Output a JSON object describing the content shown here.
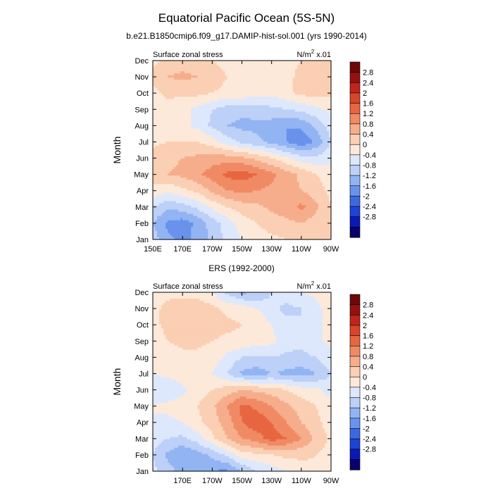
{
  "figure": {
    "title": "Equatorial Pacific Ocean (5S-5N)",
    "subtitle": "b.e21.B1850cmip6.f09_g17.DAMIP-hist-sol.001 (yrs 1990-2014)",
    "colors": {
      "levels": [
        "#08026b",
        "#0a18b8",
        "#1d44d4",
        "#3b6ae0",
        "#6892ec",
        "#93b4f3",
        "#bcd0f8",
        "#dde8fc",
        "#fde9d9",
        "#fbcfb4",
        "#f6ad8b",
        "#f08a65",
        "#e76641",
        "#d9452a",
        "#c0251b",
        "#961010",
        "#6e0808"
      ],
      "level_bounds": [
        -2.8,
        -2.4,
        -2,
        -1.6,
        -1.2,
        -0.8,
        -0.4,
        0,
        0.4,
        0.8,
        1.2,
        1.6,
        2,
        2.4,
        2.8
      ]
    }
  },
  "chart_data": [
    {
      "type": "heatmap",
      "subtitle": "",
      "left_label": "Surface zonal stress",
      "right_label": "N/m",
      "right_label_sup": "2",
      "right_label_suffix": " x.01",
      "ylabel": "Month",
      "xlabel": "",
      "x_ticks": [
        "150E",
        "170E",
        "170W",
        "150W",
        "130W",
        "110W",
        "90W"
      ],
      "x_tick_values": [
        150,
        170,
        190,
        210,
        230,
        250,
        270
      ],
      "xlim": [
        150,
        270
      ],
      "y_ticks": [
        "Jan",
        "Feb",
        "Mar",
        "Apr",
        "May",
        "Jun",
        "Jul",
        "Aug",
        "Sep",
        "Oct",
        "Nov",
        "Dec"
      ],
      "colorbar_labels": [
        "2.8",
        "2.4",
        "2",
        "1.6",
        "1.2",
        "0.8",
        "0.4",
        "0",
        "-0.4",
        "-0.8",
        "-1.2",
        "-1.6",
        "-2",
        "-2.4",
        "-2.8"
      ],
      "x": [
        150,
        160,
        170,
        180,
        190,
        200,
        210,
        220,
        230,
        240,
        250,
        260,
        270
      ],
      "values": [
        [
          -0.6,
          -1.1,
          -1.3,
          -1.1,
          -0.7,
          -0.3,
          0.0,
          0.2,
          0.3,
          0.4,
          0.5,
          0.5,
          0.4
        ],
        [
          -0.8,
          -1.3,
          -1.4,
          -1.1,
          -0.6,
          -0.2,
          0.2,
          0.4,
          0.6,
          0.7,
          0.8,
          0.6,
          0.4
        ],
        [
          -0.4,
          -0.7,
          -0.6,
          -0.3,
          0.1,
          0.4,
          0.6,
          0.7,
          0.9,
          1.0,
          1.3,
          0.9,
          0.4
        ],
        [
          0.3,
          0.1,
          0.3,
          0.5,
          0.9,
          1.2,
          1.3,
          1.2,
          1.1,
          1.0,
          0.8,
          0.6,
          0.3
        ],
        [
          0.6,
          0.8,
          0.9,
          1.1,
          1.4,
          1.7,
          1.8,
          1.6,
          1.3,
          1.0,
          0.7,
          0.4,
          0.2
        ],
        [
          0.6,
          0.7,
          0.8,
          0.9,
          1.0,
          1.0,
          0.9,
          0.7,
          0.4,
          0.1,
          -0.2,
          -0.3,
          -0.1
        ],
        [
          0.3,
          0.4,
          0.4,
          0.4,
          0.2,
          -0.2,
          -0.5,
          -0.7,
          -0.9,
          -1.2,
          -1.5,
          -1.1,
          -0.4
        ],
        [
          0.0,
          0.1,
          0.1,
          -0.1,
          -0.5,
          -0.8,
          -0.9,
          -0.9,
          -1.0,
          -1.2,
          -1.1,
          -0.7,
          -0.2
        ],
        [
          0.2,
          0.2,
          0.1,
          -0.1,
          -0.4,
          -0.6,
          -0.7,
          -0.6,
          -0.5,
          -0.4,
          -0.3,
          -0.1,
          0.1
        ],
        [
          0.3,
          0.5,
          0.5,
          0.5,
          0.4,
          0.3,
          0.3,
          0.2,
          0.1,
          0.3,
          0.5,
          0.6,
          0.5
        ],
        [
          0.5,
          0.8,
          0.9,
          0.8,
          0.6,
          0.4,
          0.4,
          0.2,
          0.1,
          0.3,
          0.5,
          0.6,
          0.5
        ],
        [
          0.3,
          0.5,
          0.6,
          0.5,
          0.4,
          0.3,
          0.2,
          0.1,
          0.1,
          0.3,
          0.4,
          0.5,
          0.4
        ]
      ]
    },
    {
      "type": "heatmap",
      "subtitle": "ERS (1992-2000)",
      "left_label": "Surface zonal stress",
      "right_label": "N/m",
      "right_label_sup": "2",
      "right_label_suffix": " x.01",
      "ylabel": "Month",
      "xlabel": "",
      "x_ticks": [
        "170E",
        "170W",
        "150W",
        "130W",
        "110W",
        "90W"
      ],
      "x_tick_values": [
        170,
        190,
        210,
        230,
        250,
        270
      ],
      "xlim": [
        150,
        270
      ],
      "y_ticks": [
        "Jan",
        "Feb",
        "Mar",
        "Apr",
        "May",
        "Jun",
        "Jul",
        "Aug",
        "Sep",
        "Oct",
        "Nov",
        "Dec"
      ],
      "colorbar_labels": [
        "2.8",
        "2.4",
        "2",
        "1.6",
        "1.2",
        "0.8",
        "0.4",
        "0",
        "-0.4",
        "-0.8",
        "-1.2",
        "-1.6",
        "-2",
        "-2.4",
        "-2.8"
      ],
      "x": [
        150,
        160,
        170,
        180,
        190,
        200,
        210,
        220,
        230,
        240,
        250,
        260,
        270
      ],
      "values": [
        [
          -0.3,
          -0.6,
          -1.0,
          -1.1,
          -1.2,
          -1.3,
          -0.8,
          -0.4,
          -0.2,
          0.0,
          0.2,
          0.3,
          0.2
        ],
        [
          -0.4,
          -0.9,
          -1.2,
          -1.0,
          -0.7,
          -0.3,
          0.2,
          0.3,
          0.4,
          0.5,
          0.5,
          0.4,
          0.2
        ],
        [
          -0.2,
          -0.4,
          -0.5,
          -0.2,
          0.3,
          0.8,
          1.2,
          1.4,
          1.8,
          1.6,
          1.2,
          0.7,
          0.3
        ],
        [
          0.0,
          -0.1,
          0.0,
          0.3,
          0.6,
          1.0,
          1.6,
          1.9,
          1.6,
          1.2,
          0.8,
          0.5,
          0.2
        ],
        [
          0.0,
          0.1,
          0.2,
          0.4,
          0.7,
          1.2,
          1.7,
          1.5,
          1.2,
          0.9,
          0.6,
          0.4,
          0.2
        ],
        [
          -0.2,
          -0.3,
          -0.1,
          0.2,
          0.4,
          0.6,
          0.8,
          0.7,
          0.6,
          0.4,
          0.2,
          0.1,
          -0.2
        ],
        [
          0.0,
          0.1,
          0.2,
          0.2,
          0.0,
          -0.4,
          -0.9,
          -1.0,
          -0.8,
          -0.9,
          -1.0,
          -0.8,
          -0.4
        ],
        [
          0.1,
          0.2,
          0.3,
          0.3,
          0.2,
          -0.1,
          -0.4,
          -0.5,
          -0.4,
          -0.5,
          -0.5,
          -0.4,
          -0.1
        ],
        [
          0.2,
          0.4,
          0.5,
          0.5,
          0.4,
          0.3,
          0.3,
          0.2,
          0.1,
          -0.2,
          -0.3,
          -0.1,
          0.1
        ],
        [
          0.3,
          0.5,
          0.5,
          0.5,
          0.6,
          0.5,
          0.4,
          0.3,
          0.0,
          -0.3,
          -0.4,
          -0.2,
          0.2
        ],
        [
          0.3,
          0.5,
          0.6,
          0.7,
          0.5,
          0.3,
          0.2,
          0.0,
          -0.3,
          -0.5,
          -0.4,
          -0.1,
          0.2
        ],
        [
          0.2,
          0.3,
          0.3,
          0.2,
          0.0,
          -0.5,
          -0.9,
          -0.8,
          -0.4,
          -0.2,
          0.0,
          0.1,
          0.2
        ]
      ]
    }
  ]
}
